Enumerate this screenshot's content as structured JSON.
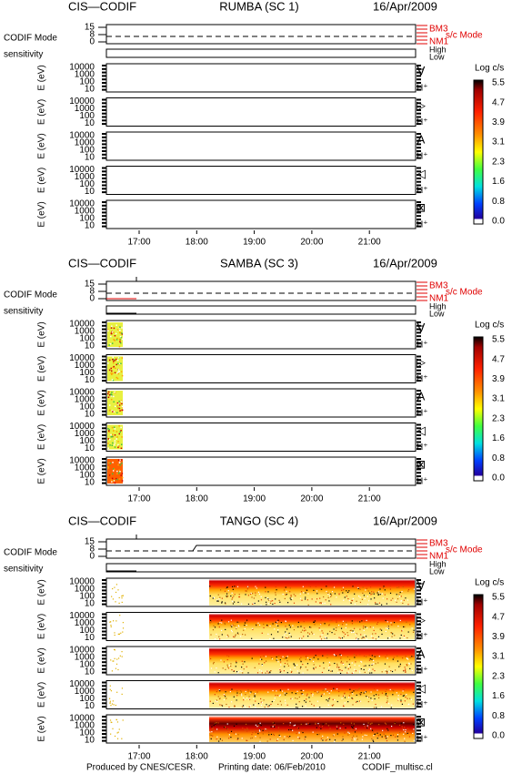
{
  "sections": [
    {
      "instrument": "CIS—CODIF",
      "spacecraft": "RUMBA (SC 1)",
      "date": "16/Apr/2009"
    },
    {
      "instrument": "CIS—CODIF",
      "spacecraft": "SAMBA (SC 3)",
      "date": "16/Apr/2009"
    },
    {
      "instrument": "CIS—CODIF",
      "spacecraft": "TANGO (SC 4)",
      "date": "16/Apr/2009"
    }
  ],
  "mode_label": "CODIF Mode",
  "mode_ticks": [
    "15",
    "8",
    "0"
  ],
  "mode_levels": [
    "BM3",
    "NM1"
  ],
  "mode_axis": "s/c Mode",
  "sensitivity_label": "sensitivity",
  "sensitivity_levels": [
    "High",
    "Low"
  ],
  "energy_label": "E (eV)",
  "energy_ticks": [
    "10000",
    "1000",
    "100",
    "10"
  ],
  "species_symbols": [
    "∀",
    "▷",
    "A",
    "◁",
    "⊠"
  ],
  "species": "H⁺",
  "colorbar": {
    "title": "Log c/s",
    "ticks": [
      "5.5",
      "4.7",
      "3.9",
      "3.1",
      "2.3",
      "1.6",
      "0.8",
      "0.0"
    ]
  },
  "time_ticks": [
    "17:00",
    "18:00",
    "19:00",
    "20:00",
    "21:00"
  ],
  "footer": {
    "producer": "Produced by CNES/CESR.",
    "printing_date": "Printing date: 06/Feb/2010",
    "file": "CODIF_multisc.cl"
  }
}
